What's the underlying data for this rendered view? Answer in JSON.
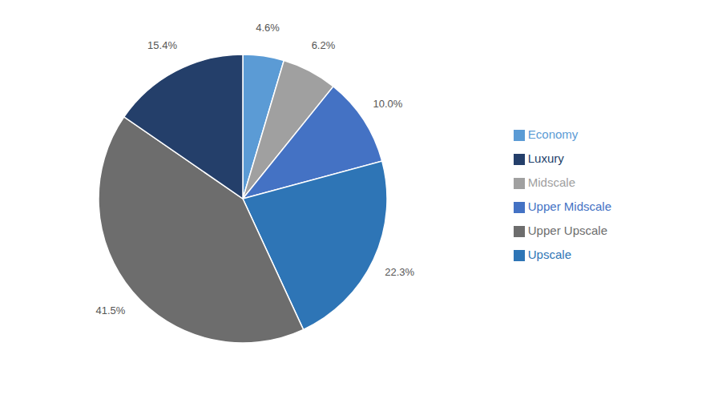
{
  "chart_data": {
    "type": "pie",
    "categories": [
      "Economy",
      "Midscale",
      "Upper Midscale",
      "Upscale",
      "Upper Upscale",
      "Luxury"
    ],
    "values": [
      4.6,
      6.2,
      10.0,
      22.3,
      41.5,
      15.4
    ],
    "value_labels": [
      "4.6%",
      "6.2%",
      "10.0%",
      "22.3%",
      "41.5%",
      "15.4%"
    ],
    "colors": [
      "#5B9BD5",
      "#A0A0A0",
      "#4472C4",
      "#2E75B6",
      "#6D6D6D",
      "#243F6A"
    ],
    "data_labels": true,
    "legend": "right"
  }
}
